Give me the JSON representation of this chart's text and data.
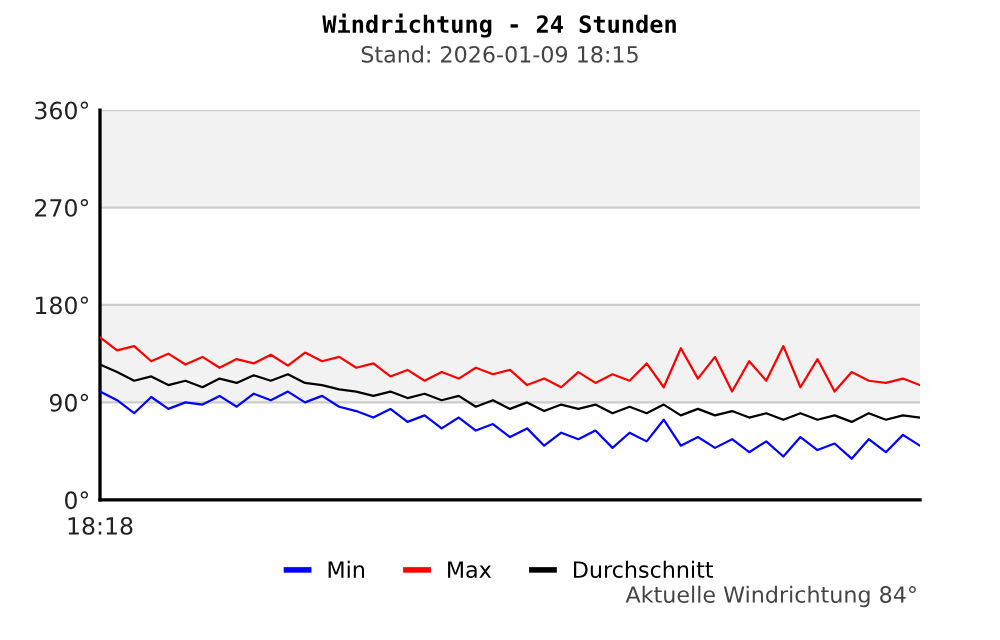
{
  "chart_data": {
    "type": "line",
    "title": "Windrichtung - 24 Stunden",
    "subtitle": "Stand: 2026-01-09 18:15",
    "annotations": [
      "Aktuelle Windrichtung 84°",
      "18:18"
    ],
    "categories": [
      null,
      null,
      null,
      null,
      null,
      null,
      null,
      null,
      null,
      null,
      null,
      null,
      null,
      null,
      null,
      null,
      null,
      null,
      null,
      null,
      null,
      null,
      null,
      null,
      null,
      null,
      null,
      null,
      null,
      null,
      null,
      null,
      null,
      null,
      null,
      null,
      null,
      null,
      null,
      null,
      null,
      null,
      null,
      null,
      null,
      null,
      null,
      null,
      null
    ],
    "series": [
      {
        "name": "Min",
        "color": "#0000ff",
        "values": [
          100,
          92,
          80,
          95,
          84,
          90,
          88,
          96,
          86,
          98,
          92,
          100,
          90,
          96,
          86,
          82,
          76,
          84,
          72,
          78,
          66,
          76,
          64,
          70,
          58,
          66,
          50,
          62,
          56,
          64,
          48,
          62,
          54,
          74,
          50,
          58,
          48,
          56,
          44,
          54,
          40,
          58,
          46,
          52,
          38,
          56,
          44,
          60,
          50
        ]
      },
      {
        "name": "Max",
        "color": "#ff0000",
        "values": [
          150,
          138,
          142,
          128,
          135,
          125,
          132,
          122,
          130,
          126,
          134,
          124,
          136,
          128,
          132,
          122,
          126,
          114,
          120,
          110,
          118,
          112,
          122,
          116,
          120,
          106,
          112,
          104,
          118,
          108,
          116,
          110,
          126,
          104,
          140,
          112,
          132,
          100,
          128,
          110,
          142,
          104,
          130,
          100,
          118,
          110,
          108,
          112,
          106
        ]
      },
      {
        "name": "Durchschnitt",
        "color": "#000000",
        "values": [
          125,
          118,
          110,
          114,
          106,
          110,
          104,
          112,
          108,
          115,
          110,
          116,
          108,
          106,
          102,
          100,
          96,
          100,
          94,
          98,
          92,
          96,
          86,
          92,
          84,
          90,
          82,
          88,
          84,
          88,
          80,
          86,
          80,
          88,
          78,
          84,
          78,
          82,
          76,
          80,
          74,
          80,
          74,
          78,
          72,
          80,
          74,
          78,
          76
        ]
      }
    ],
    "ylim": [
      0,
      360
    ],
    "yticks": [
      {
        "value": 0,
        "label": "0°"
      },
      {
        "value": 90,
        "label": "90°"
      },
      {
        "value": 180,
        "label": "180°"
      },
      {
        "value": 270,
        "label": "270°"
      },
      {
        "value": 360,
        "label": "360°"
      }
    ],
    "bands": [
      {
        "axis": "y",
        "from": 90,
        "to": 180,
        "color": "#f2f2f2"
      },
      {
        "axis": "y",
        "from": 270,
        "to": 360,
        "color": "#f2f2f2"
      }
    ],
    "grid": "y",
    "legend": "bottom",
    "marker": "none",
    "line_style": "solid"
  }
}
